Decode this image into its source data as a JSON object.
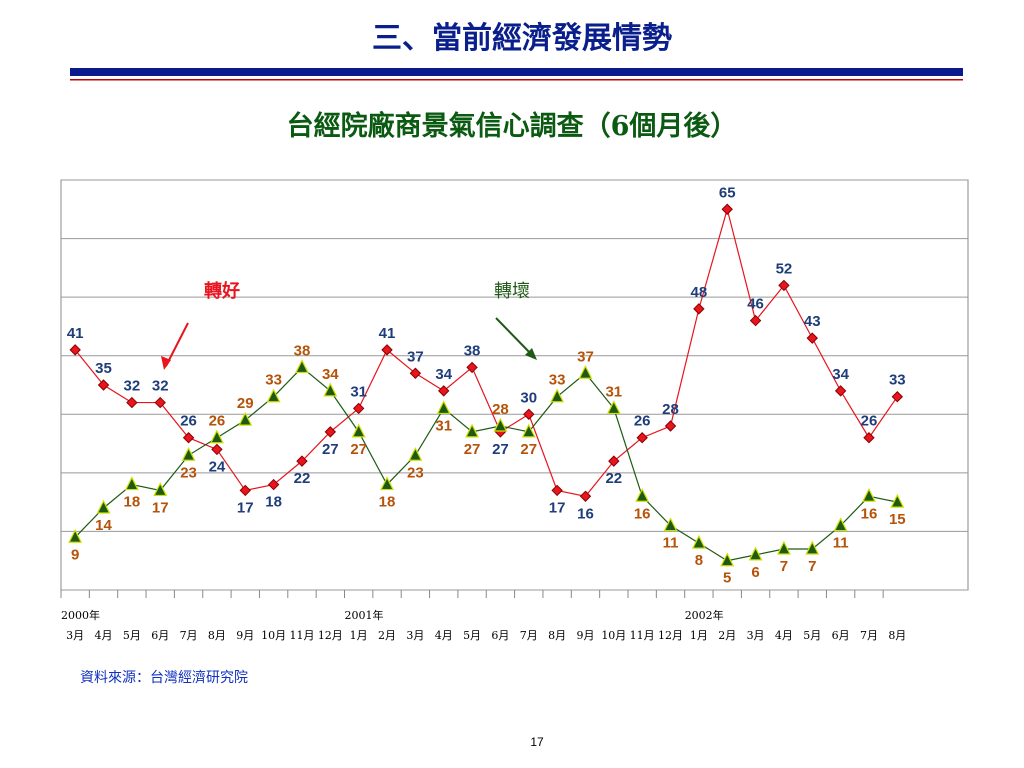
{
  "title": "三、當前經濟發展情勢",
  "chart_data": {
    "type": "line",
    "title": "台經院廠商景氣信心調查（6個月後）",
    "categories": [
      "3月",
      "4月",
      "5月",
      "6月",
      "7月",
      "8月",
      "9月",
      "10月",
      "11月",
      "12月",
      "1月",
      "2月",
      "3月",
      "4月",
      "5月",
      "6月",
      "7月",
      "8月",
      "9月",
      "10月",
      "11月",
      "12月",
      "1月",
      "2月",
      "3月",
      "4月",
      "5月",
      "6月",
      "7月",
      "8月"
    ],
    "year_labels": [
      {
        "label": "2000年",
        "category": 0
      },
      {
        "label": "2001年",
        "category": 10
      },
      {
        "label": "2002年",
        "category": 22
      }
    ],
    "series": [
      {
        "name": "轉好",
        "color": "#e8141e",
        "marker": "diamond",
        "label_color": "#1f3d7a",
        "values": [
          41,
          35,
          32,
          32,
          26,
          24,
          17,
          18,
          22,
          27,
          31,
          41,
          37,
          34,
          38,
          27,
          30,
          17,
          16,
          22,
          26,
          28,
          48,
          65,
          46,
          52,
          43,
          34,
          26,
          33
        ]
      },
      {
        "name": "轉壞",
        "color": "#1e5a14",
        "marker": "triangle",
        "label_color": "#b5530a",
        "values": [
          9,
          14,
          18,
          17,
          23,
          26,
          29,
          33,
          38,
          34,
          27,
          18,
          23,
          31,
          27,
          28,
          27,
          33,
          37,
          31,
          16,
          11,
          8,
          5,
          6,
          7,
          7,
          11,
          16,
          15
        ]
      }
    ],
    "ylim": [
      0,
      70
    ],
    "yticks": [
      0,
      10,
      20,
      30,
      40,
      50,
      60,
      70
    ],
    "grid": true
  },
  "source": "資料來源：台灣經濟研究院",
  "page_number": "17"
}
